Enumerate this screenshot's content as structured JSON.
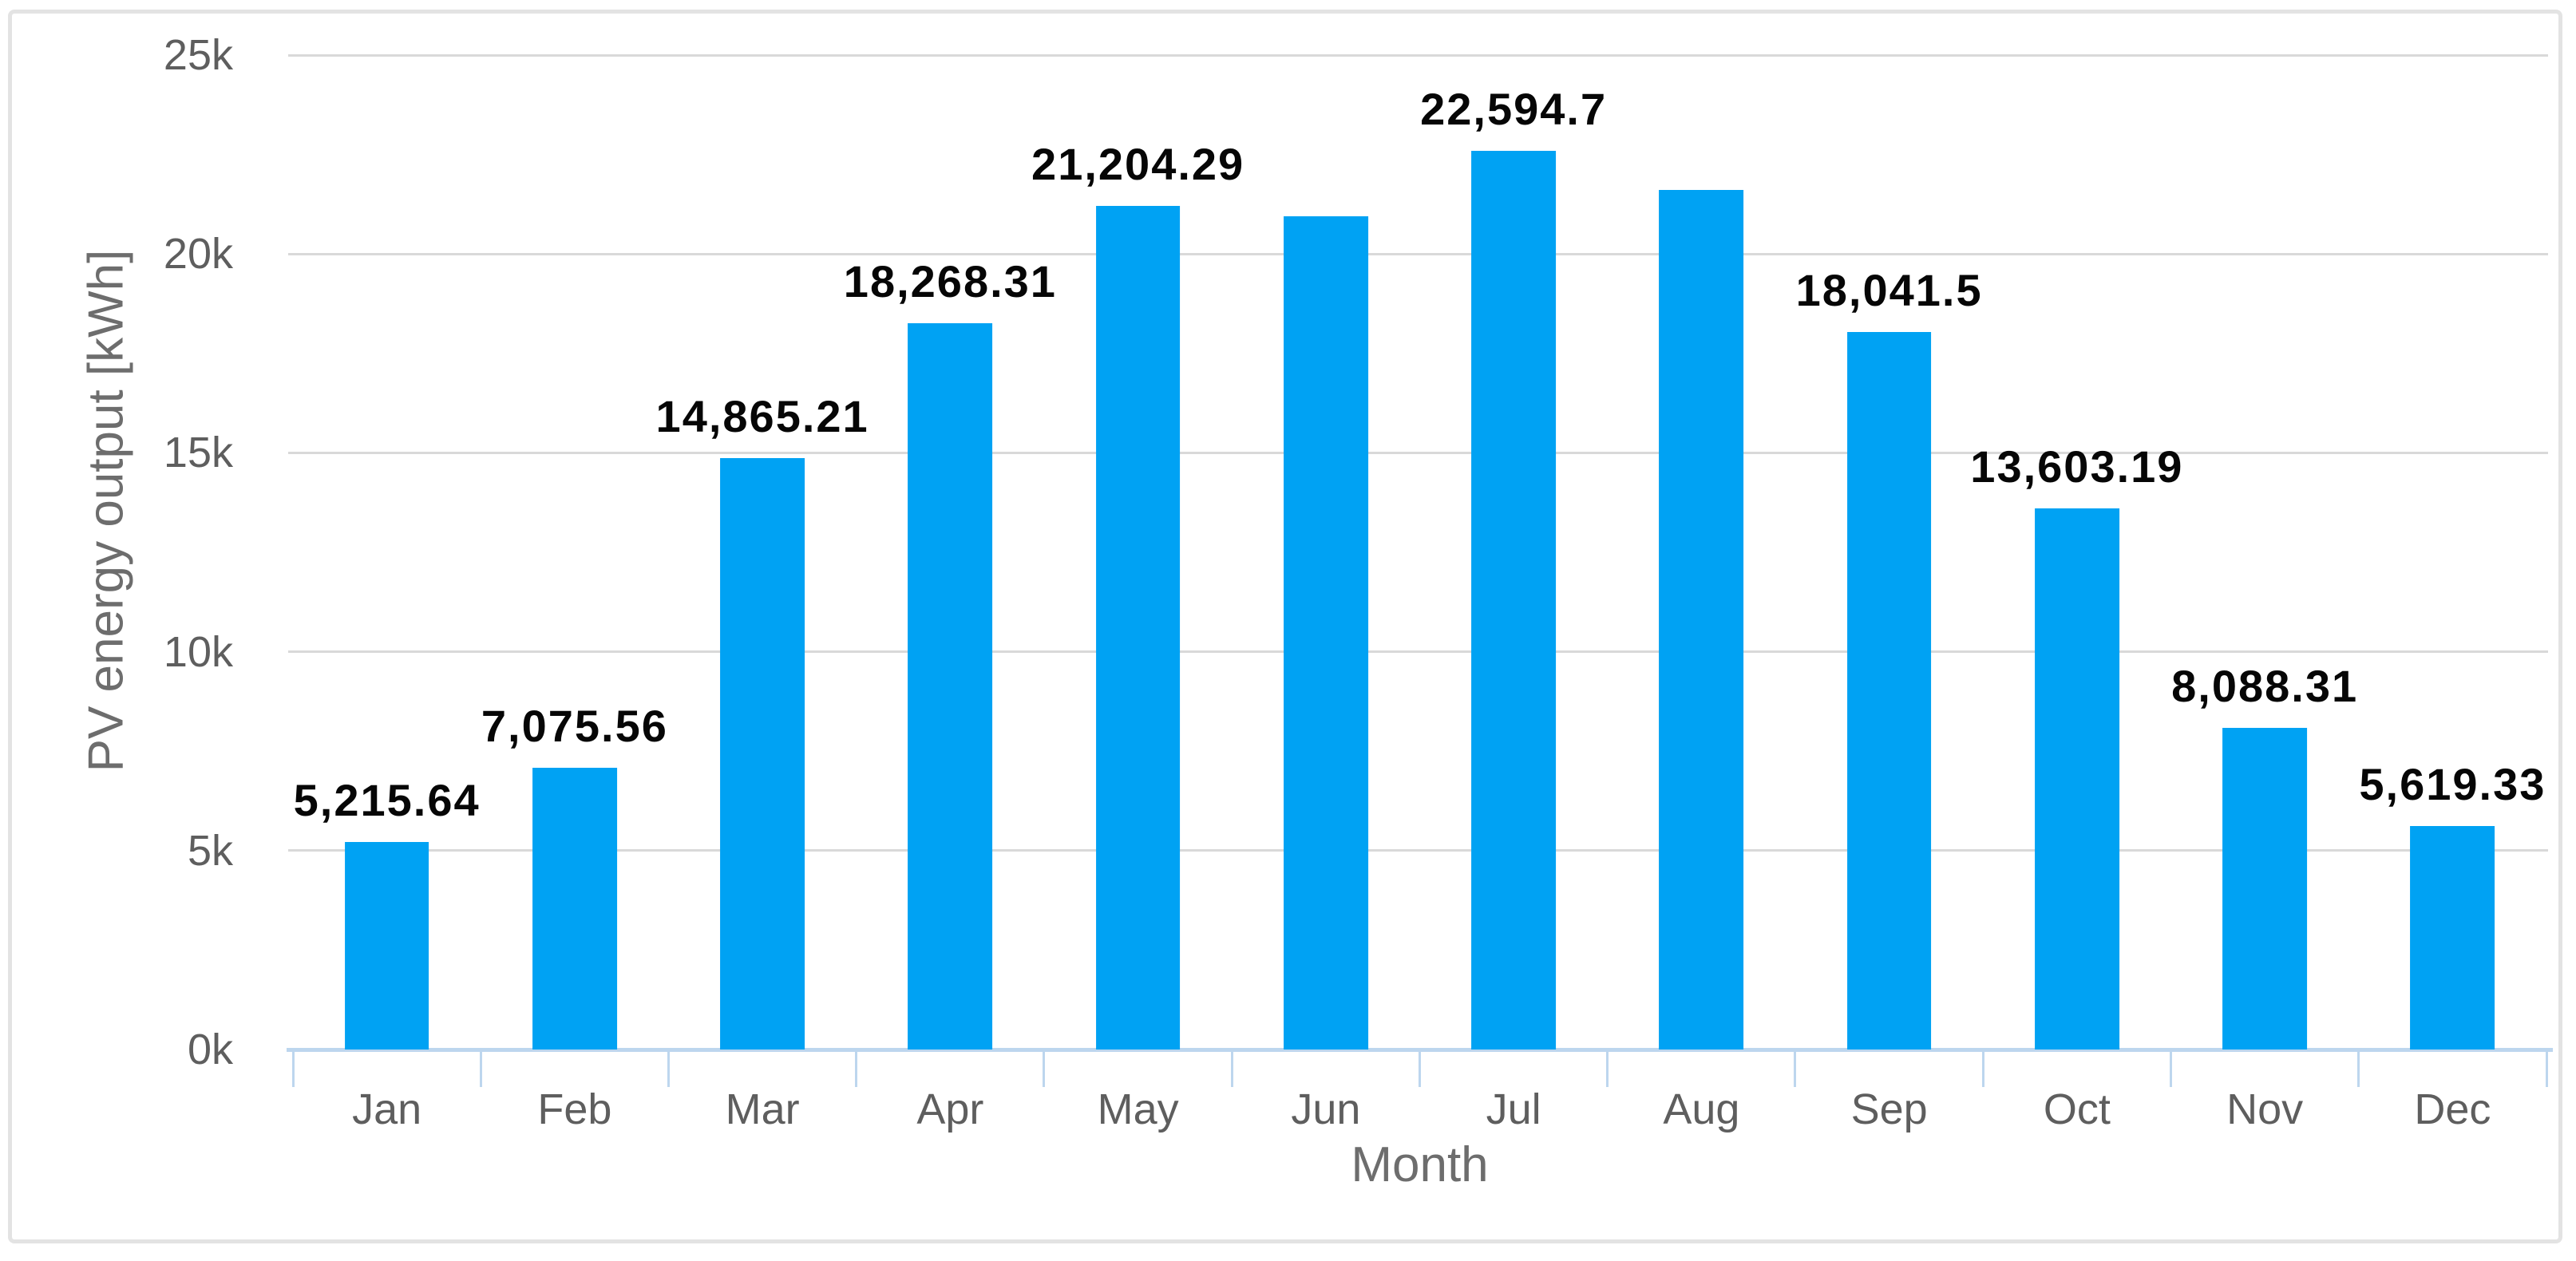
{
  "chart_data": {
    "type": "bar",
    "title": "",
    "xlabel": "Month",
    "ylabel": "PV energy output [kWh]",
    "categories": [
      "Jan",
      "Feb",
      "Mar",
      "Apr",
      "May",
      "Jun",
      "Jul",
      "Aug",
      "Sep",
      "Oct",
      "Nov",
      "Dec"
    ],
    "values": [
      5215.64,
      7075.56,
      14865.21,
      18268.31,
      21204.29,
      20950,
      22594.7,
      21600,
      18041.5,
      13603.19,
      8088.31,
      5619.33
    ],
    "data_labels": [
      "5,215.64",
      "7,075.56",
      "14,865.21",
      "18,268.31",
      "21,204.29",
      "",
      "22,594.7",
      "",
      "18,041.5",
      "13,603.19",
      "8,088.31",
      "5,619.33"
    ],
    "ylim": [
      0,
      25000
    ],
    "ytick_labels": [
      "0k",
      "5k",
      "10k",
      "15k",
      "20k",
      "25k"
    ],
    "ytick_values": [
      0,
      5000,
      10000,
      15000,
      20000,
      25000
    ],
    "grid": "horizontal-on",
    "legend": "none",
    "bar_color": "#00a2f3",
    "gridline_color": "#d9d9d9",
    "axis_line_color": "#bdd6ee",
    "axis_text_color": "#5e5e5e",
    "axis_title_color": "#6d6d6d",
    "data_label_color": "#060606",
    "frame_border_color": "#e3e3e3"
  }
}
